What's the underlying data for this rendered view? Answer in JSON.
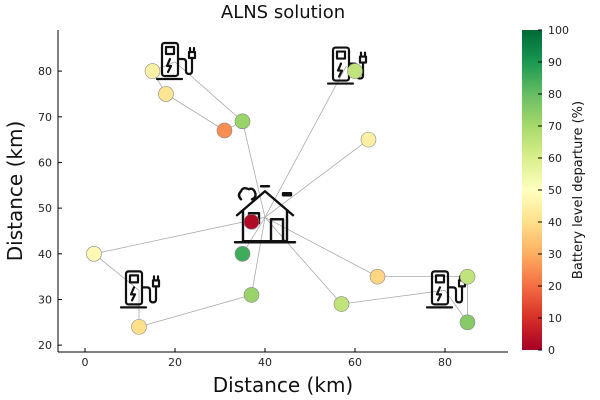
{
  "chart_data": {
    "type": "scatter",
    "title": "ALNS solution",
    "xlabel": "Distance (km)",
    "ylabel": "Distance (km)",
    "xlim": [
      -6,
      94
    ],
    "ylim": [
      18.5,
      89
    ],
    "x_ticks": [
      0,
      20,
      40,
      60,
      80
    ],
    "y_ticks": [
      20,
      30,
      40,
      50,
      60,
      70,
      80
    ],
    "grid": false,
    "colorbar": {
      "title": "Battery level departure (%)",
      "range": [
        0,
        100
      ],
      "ticks": [
        0,
        10,
        20,
        30,
        40,
        50,
        60,
        70,
        80,
        90,
        100
      ],
      "colormap": "RdYlGn"
    },
    "depot": {
      "x": 40,
      "y": 48,
      "icon": "house-icon"
    },
    "charging_stations": [
      {
        "x": 20,
        "y": 82,
        "icon": "charging-station-icon"
      },
      {
        "x": 58,
        "y": 81,
        "icon": "charging-station-icon"
      },
      {
        "x": 12,
        "y": 32,
        "icon": "charging-station-icon"
      },
      {
        "x": 80,
        "y": 32,
        "icon": "charging-station-icon"
      }
    ],
    "customers": [
      {
        "x": 37,
        "y": 47,
        "battery": 2
      },
      {
        "x": 15,
        "y": 80,
        "battery": 45
      },
      {
        "x": 18,
        "y": 75,
        "battery": 42
      },
      {
        "x": 31,
        "y": 67,
        "battery": 25
      },
      {
        "x": 35,
        "y": 69,
        "battery": 72
      },
      {
        "x": 60,
        "y": 80,
        "battery": 65
      },
      {
        "x": 63,
        "y": 65,
        "battery": 45
      },
      {
        "x": 2,
        "y": 40,
        "battery": 48
      },
      {
        "x": 35,
        "y": 40,
        "battery": 85
      },
      {
        "x": 37,
        "y": 31,
        "battery": 72
      },
      {
        "x": 12,
        "y": 24,
        "battery": 40
      },
      {
        "x": 57,
        "y": 29,
        "battery": 65
      },
      {
        "x": 65,
        "y": 35,
        "battery": 38
      },
      {
        "x": 85,
        "y": 35,
        "battery": 65
      },
      {
        "x": 85,
        "y": 25,
        "battery": 75
      }
    ],
    "routes": [
      [
        [
          40,
          48
        ],
        [
          35,
          69
        ],
        [
          31,
          67
        ],
        [
          18,
          75
        ],
        [
          15,
          80
        ],
        [
          20,
          82
        ],
        [
          35,
          69
        ]
      ],
      [
        [
          40,
          48
        ],
        [
          58,
          81
        ],
        [
          60,
          80
        ]
      ],
      [
        [
          40,
          48
        ],
        [
          63,
          65
        ]
      ],
      [
        [
          40,
          48
        ],
        [
          2,
          40
        ],
        [
          12,
          32
        ],
        [
          12,
          24
        ],
        [
          37,
          31
        ],
        [
          40,
          48
        ]
      ],
      [
        [
          40,
          48
        ],
        [
          35,
          40
        ]
      ],
      [
        [
          40,
          48
        ],
        [
          65,
          35
        ],
        [
          85,
          35
        ],
        [
          85,
          25
        ],
        [
          80,
          32
        ],
        [
          57,
          29
        ],
        [
          40,
          48
        ]
      ]
    ]
  }
}
